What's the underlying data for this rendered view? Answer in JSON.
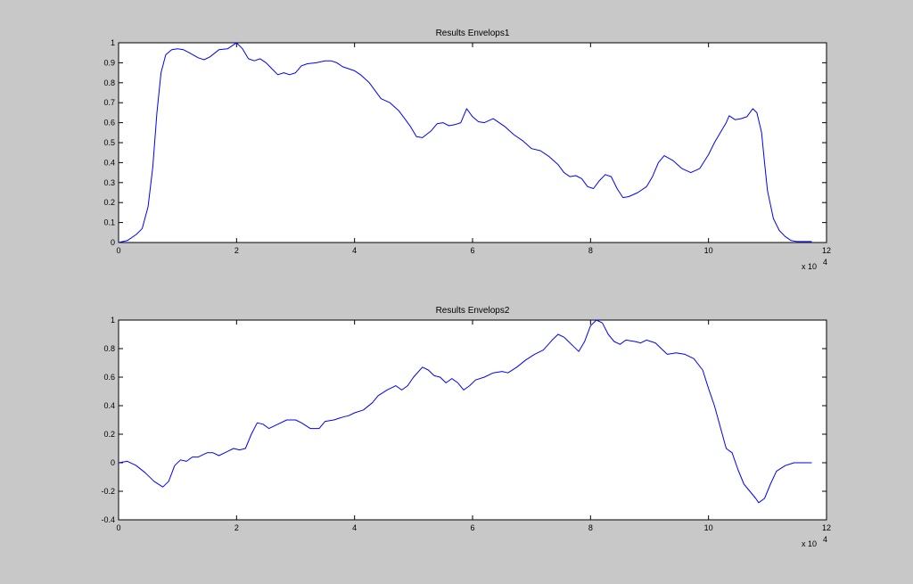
{
  "chart_data": [
    {
      "type": "line",
      "title": "Results Envelops1",
      "xlabel": "",
      "ylabel": "",
      "x_exponent_label": "x 10",
      "x_exponent_power": "4",
      "xlim": [
        0,
        12
      ],
      "ylim": [
        0,
        1
      ],
      "xticks": [
        0,
        2,
        4,
        6,
        8,
        10,
        12
      ],
      "yticks": [
        0,
        0.1,
        0.2,
        0.3,
        0.4,
        0.5,
        0.6,
        0.7,
        0.8,
        0.9,
        1
      ],
      "xtick_labels": [
        "0",
        "2",
        "4",
        "6",
        "8",
        "10",
        "12"
      ],
      "ytick_labels": [
        "0",
        "0.1",
        "0.2",
        "0.3",
        "0.4",
        "0.5",
        "0.6",
        "0.7",
        "0.8",
        "0.9",
        "1"
      ],
      "grid": false,
      "line_color": "#0000ff",
      "series": [
        {
          "values": [
            [
              0.0,
              0.0
            ],
            [
              0.15,
              0.01
            ],
            [
              0.3,
              0.04
            ],
            [
              0.4,
              0.07
            ],
            [
              0.5,
              0.18
            ],
            [
              0.58,
              0.38
            ],
            [
              0.65,
              0.65
            ],
            [
              0.72,
              0.85
            ],
            [
              0.8,
              0.94
            ],
            [
              0.9,
              0.965
            ],
            [
              1.0,
              0.97
            ],
            [
              1.1,
              0.965
            ],
            [
              1.2,
              0.95
            ],
            [
              1.35,
              0.925
            ],
            [
              1.45,
              0.915
            ],
            [
              1.55,
              0.93
            ],
            [
              1.7,
              0.965
            ],
            [
              1.85,
              0.97
            ],
            [
              1.95,
              0.99
            ],
            [
              2.0,
              1.0
            ],
            [
              2.1,
              0.97
            ],
            [
              2.2,
              0.92
            ],
            [
              2.3,
              0.91
            ],
            [
              2.4,
              0.92
            ],
            [
              2.5,
              0.9
            ],
            [
              2.6,
              0.87
            ],
            [
              2.7,
              0.84
            ],
            [
              2.8,
              0.85
            ],
            [
              2.9,
              0.84
            ],
            [
              3.0,
              0.85
            ],
            [
              3.1,
              0.885
            ],
            [
              3.2,
              0.895
            ],
            [
              3.35,
              0.9
            ],
            [
              3.5,
              0.91
            ],
            [
              3.6,
              0.91
            ],
            [
              3.7,
              0.9
            ],
            [
              3.8,
              0.88
            ],
            [
              3.9,
              0.87
            ],
            [
              4.0,
              0.86
            ],
            [
              4.1,
              0.84
            ],
            [
              4.25,
              0.8
            ],
            [
              4.35,
              0.76
            ],
            [
              4.45,
              0.72
            ],
            [
              4.6,
              0.7
            ],
            [
              4.75,
              0.66
            ],
            [
              4.85,
              0.62
            ],
            [
              4.95,
              0.58
            ],
            [
              5.05,
              0.53
            ],
            [
              5.15,
              0.525
            ],
            [
              5.3,
              0.56
            ],
            [
              5.4,
              0.595
            ],
            [
              5.5,
              0.6
            ],
            [
              5.6,
              0.585
            ],
            [
              5.7,
              0.59
            ],
            [
              5.8,
              0.6
            ],
            [
              5.9,
              0.67
            ],
            [
              6.0,
              0.63
            ],
            [
              6.1,
              0.605
            ],
            [
              6.2,
              0.6
            ],
            [
              6.35,
              0.62
            ],
            [
              6.45,
              0.6
            ],
            [
              6.55,
              0.58
            ],
            [
              6.7,
              0.54
            ],
            [
              6.85,
              0.51
            ],
            [
              7.0,
              0.47
            ],
            [
              7.15,
              0.46
            ],
            [
              7.3,
              0.43
            ],
            [
              7.45,
              0.39
            ],
            [
              7.55,
              0.35
            ],
            [
              7.65,
              0.33
            ],
            [
              7.75,
              0.335
            ],
            [
              7.85,
              0.32
            ],
            [
              7.95,
              0.28
            ],
            [
              8.05,
              0.27
            ],
            [
              8.15,
              0.31
            ],
            [
              8.25,
              0.34
            ],
            [
              8.35,
              0.33
            ],
            [
              8.45,
              0.27
            ],
            [
              8.55,
              0.225
            ],
            [
              8.65,
              0.23
            ],
            [
              8.8,
              0.25
            ],
            [
              8.95,
              0.28
            ],
            [
              9.05,
              0.33
            ],
            [
              9.15,
              0.4
            ],
            [
              9.25,
              0.435
            ],
            [
              9.4,
              0.41
            ],
            [
              9.55,
              0.37
            ],
            [
              9.7,
              0.35
            ],
            [
              9.85,
              0.37
            ],
            [
              10.0,
              0.44
            ],
            [
              10.1,
              0.5
            ],
            [
              10.2,
              0.55
            ],
            [
              10.3,
              0.6
            ],
            [
              10.35,
              0.635
            ],
            [
              10.45,
              0.615
            ],
            [
              10.55,
              0.62
            ],
            [
              10.65,
              0.63
            ],
            [
              10.75,
              0.67
            ],
            [
              10.82,
              0.65
            ],
            [
              10.9,
              0.55
            ],
            [
              10.95,
              0.4
            ],
            [
              11.0,
              0.26
            ],
            [
              11.1,
              0.12
            ],
            [
              11.2,
              0.06
            ],
            [
              11.3,
              0.03
            ],
            [
              11.4,
              0.01
            ],
            [
              11.5,
              0.005
            ],
            [
              11.75,
              0.005
            ]
          ]
        }
      ]
    },
    {
      "type": "line",
      "title": "Results Envelops2",
      "xlabel": "",
      "ylabel": "",
      "x_exponent_label": "x 10",
      "x_exponent_power": "4",
      "xlim": [
        0,
        12
      ],
      "ylim": [
        -0.4,
        1
      ],
      "xticks": [
        0,
        2,
        4,
        6,
        8,
        10,
        12
      ],
      "yticks": [
        -0.4,
        -0.2,
        0,
        0.2,
        0.4,
        0.6,
        0.8,
        1
      ],
      "xtick_labels": [
        "0",
        "2",
        "4",
        "6",
        "8",
        "10",
        "12"
      ],
      "ytick_labels": [
        "-0.4",
        "-0.2",
        "0",
        "0.2",
        "0.4",
        "0.6",
        "0.8",
        "1"
      ],
      "grid": false,
      "line_color": "#0000ff",
      "series": [
        {
          "values": [
            [
              0.0,
              0.0
            ],
            [
              0.15,
              0.01
            ],
            [
              0.3,
              -0.02
            ],
            [
              0.45,
              -0.07
            ],
            [
              0.6,
              -0.13
            ],
            [
              0.75,
              -0.17
            ],
            [
              0.85,
              -0.13
            ],
            [
              0.95,
              -0.02
            ],
            [
              1.05,
              0.02
            ],
            [
              1.15,
              0.01
            ],
            [
              1.25,
              0.04
            ],
            [
              1.35,
              0.04
            ],
            [
              1.5,
              0.07
            ],
            [
              1.6,
              0.07
            ],
            [
              1.7,
              0.05
            ],
            [
              1.8,
              0.07
            ],
            [
              1.95,
              0.1
            ],
            [
              2.05,
              0.09
            ],
            [
              2.15,
              0.1
            ],
            [
              2.25,
              0.2
            ],
            [
              2.35,
              0.28
            ],
            [
              2.45,
              0.27
            ],
            [
              2.55,
              0.24
            ],
            [
              2.7,
              0.27
            ],
            [
              2.85,
              0.3
            ],
            [
              3.0,
              0.3
            ],
            [
              3.1,
              0.28
            ],
            [
              3.25,
              0.24
            ],
            [
              3.4,
              0.24
            ],
            [
              3.5,
              0.29
            ],
            [
              3.65,
              0.3
            ],
            [
              3.8,
              0.32
            ],
            [
              3.9,
              0.33
            ],
            [
              4.0,
              0.35
            ],
            [
              4.15,
              0.37
            ],
            [
              4.3,
              0.42
            ],
            [
              4.4,
              0.47
            ],
            [
              4.55,
              0.51
            ],
            [
              4.7,
              0.54
            ],
            [
              4.8,
              0.51
            ],
            [
              4.9,
              0.54
            ],
            [
              5.0,
              0.6
            ],
            [
              5.15,
              0.67
            ],
            [
              5.25,
              0.65
            ],
            [
              5.35,
              0.61
            ],
            [
              5.45,
              0.6
            ],
            [
              5.55,
              0.56
            ],
            [
              5.65,
              0.59
            ],
            [
              5.75,
              0.56
            ],
            [
              5.85,
              0.51
            ],
            [
              5.95,
              0.54
            ],
            [
              6.05,
              0.58
            ],
            [
              6.2,
              0.6
            ],
            [
              6.35,
              0.63
            ],
            [
              6.5,
              0.64
            ],
            [
              6.6,
              0.63
            ],
            [
              6.75,
              0.67
            ],
            [
              6.9,
              0.72
            ],
            [
              7.05,
              0.76
            ],
            [
              7.2,
              0.79
            ],
            [
              7.35,
              0.86
            ],
            [
              7.45,
              0.9
            ],
            [
              7.55,
              0.88
            ],
            [
              7.7,
              0.82
            ],
            [
              7.8,
              0.78
            ],
            [
              7.9,
              0.85
            ],
            [
              8.0,
              0.96
            ],
            [
              8.1,
              1.0
            ],
            [
              8.2,
              0.98
            ],
            [
              8.3,
              0.9
            ],
            [
              8.4,
              0.85
            ],
            [
              8.5,
              0.83
            ],
            [
              8.6,
              0.86
            ],
            [
              8.75,
              0.85
            ],
            [
              8.85,
              0.84
            ],
            [
              8.95,
              0.86
            ],
            [
              9.1,
              0.84
            ],
            [
              9.2,
              0.8
            ],
            [
              9.3,
              0.76
            ],
            [
              9.45,
              0.77
            ],
            [
              9.6,
              0.76
            ],
            [
              9.75,
              0.73
            ],
            [
              9.9,
              0.65
            ],
            [
              10.0,
              0.52
            ],
            [
              10.1,
              0.4
            ],
            [
              10.2,
              0.25
            ],
            [
              10.3,
              0.1
            ],
            [
              10.4,
              0.07
            ],
            [
              10.5,
              -0.05
            ],
            [
              10.6,
              -0.15
            ],
            [
              10.7,
              -0.2
            ],
            [
              10.8,
              -0.25
            ],
            [
              10.85,
              -0.28
            ],
            [
              10.95,
              -0.25
            ],
            [
              11.05,
              -0.15
            ],
            [
              11.15,
              -0.06
            ],
            [
              11.3,
              -0.02
            ],
            [
              11.45,
              0.0
            ],
            [
              11.6,
              0.0
            ],
            [
              11.75,
              0.0
            ]
          ]
        }
      ]
    }
  ]
}
